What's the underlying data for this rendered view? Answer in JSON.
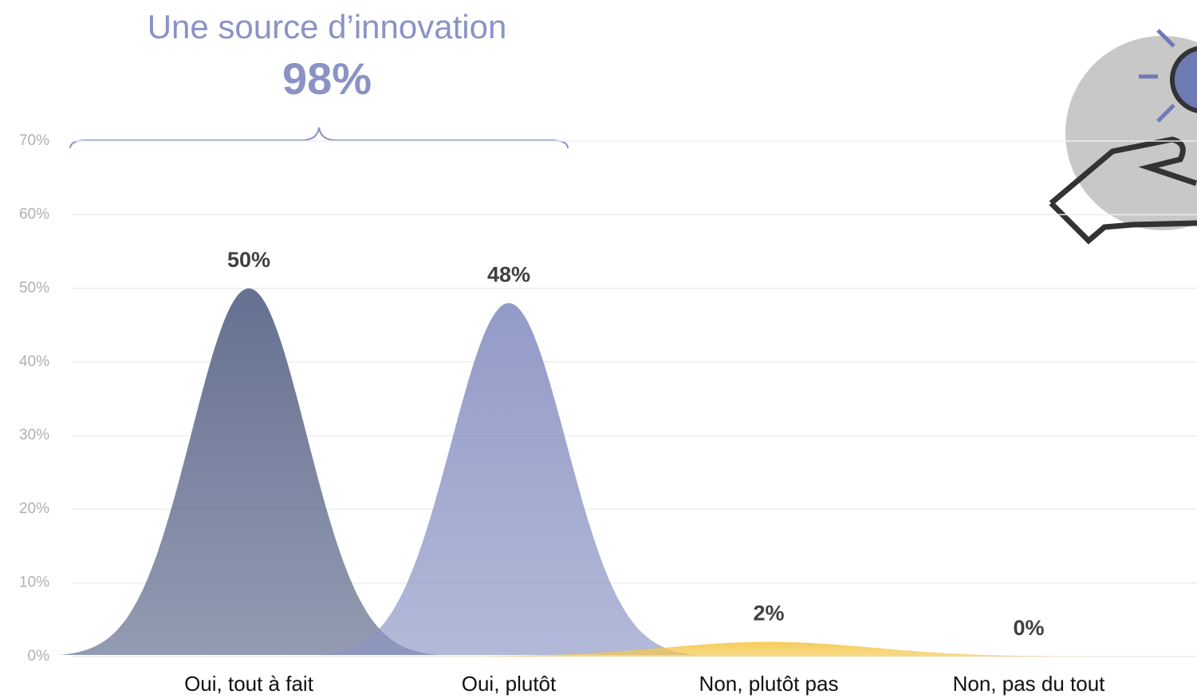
{
  "chart_data": {
    "type": "bell",
    "annotation": {
      "title": "Une source d’innovation",
      "label": "98%"
    },
    "categories": [
      "Oui, tout à fait",
      "Oui, plutôt",
      "Non, plutôt pas",
      "Non, pas du tout"
    ],
    "values": [
      50,
      48,
      2,
      0
    ],
    "value_labels": [
      "50%",
      "48%",
      "2%",
      "0%"
    ],
    "colors": [
      "#5a6689",
      "#8a93c3",
      "#f5c84c",
      "#8a93c3"
    ],
    "ylim": [
      0,
      70
    ],
    "yticks": [
      {
        "value": 0,
        "label": "0%"
      },
      {
        "value": 10,
        "label": "10%"
      },
      {
        "value": 20,
        "label": "20%"
      },
      {
        "value": 30,
        "label": "30%"
      },
      {
        "value": 40,
        "label": "40%"
      },
      {
        "value": 50,
        "label": "50%"
      },
      {
        "value": 60,
        "label": "60%"
      },
      {
        "value": 70,
        "label": "70%"
      }
    ],
    "grid": true
  }
}
